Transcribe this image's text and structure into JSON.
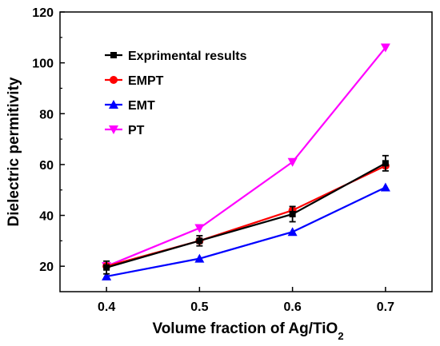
{
  "chart_data": {
    "type": "line",
    "xlabel_main": "Volume fraction of Ag/TiO",
    "xlabel_sub": "2",
    "ylabel": "Dielectric permitivity",
    "x": [
      0.4,
      0.5,
      0.6,
      0.7
    ],
    "x_ticks": [
      "0.4",
      "0.5",
      "0.6",
      "0.7"
    ],
    "y_ticks": [
      "20",
      "40",
      "60",
      "80",
      "100",
      "120"
    ],
    "xlim": [
      0.35,
      0.75
    ],
    "ylim": [
      10,
      120
    ],
    "grid": false,
    "legend_position": "top-left",
    "series": [
      {
        "name": "Exprimental results",
        "color": "#000000",
        "marker": "square",
        "values": [
          19.5,
          30,
          40.5,
          60.5
        ],
        "errors": [
          2.5,
          2,
          3,
          3
        ]
      },
      {
        "name": "EMPT",
        "color": "#ff0000",
        "marker": "circle",
        "values": [
          20,
          30,
          42,
          59.5
        ]
      },
      {
        "name": "EMT",
        "color": "#0000ff",
        "marker": "triangle-up",
        "values": [
          16,
          23,
          33.5,
          51
        ]
      },
      {
        "name": "PT",
        "color": "#ff00ff",
        "marker": "triangle-down",
        "values": [
          20,
          35,
          61,
          106
        ]
      }
    ]
  }
}
